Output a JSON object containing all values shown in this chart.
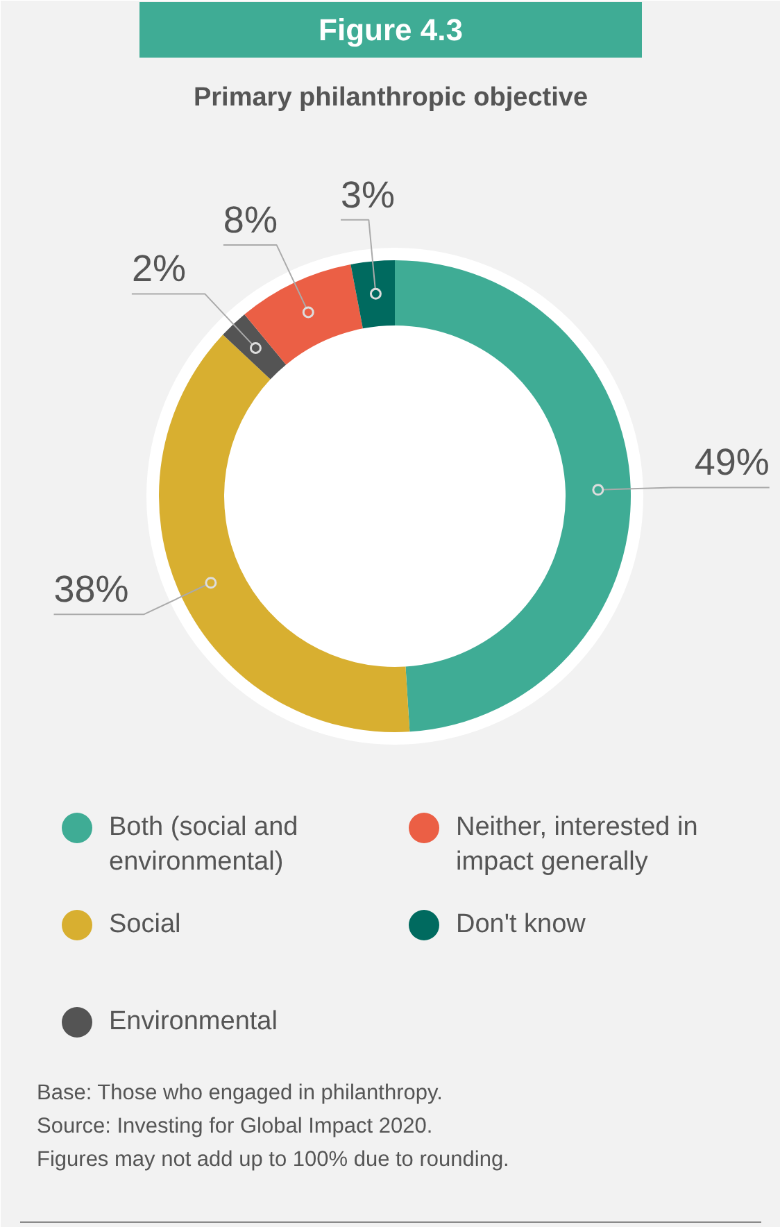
{
  "chart_data": {
    "type": "donut",
    "title": "Figure 4.3",
    "subtitle": "Primary philanthropic objective",
    "categories": [
      "Both (social and environmental)",
      "Social",
      "Environmental",
      "Neither, interested in impact generally",
      "Don't know"
    ],
    "values": [
      49,
      38,
      2,
      8,
      3
    ],
    "colors": [
      "#3fac95",
      "#d8af30",
      "#545454",
      "#eb5f45",
      "#006a5f"
    ],
    "value_labels": [
      "49%",
      "38%",
      "2%",
      "8%",
      "3%"
    ],
    "legend": "bottom",
    "annotations": [
      "Base: Those who engaged in philanthropy.",
      "Source: Investing for Global Impact 2020.",
      "Figures may not add up to 100% due to rounding."
    ]
  }
}
